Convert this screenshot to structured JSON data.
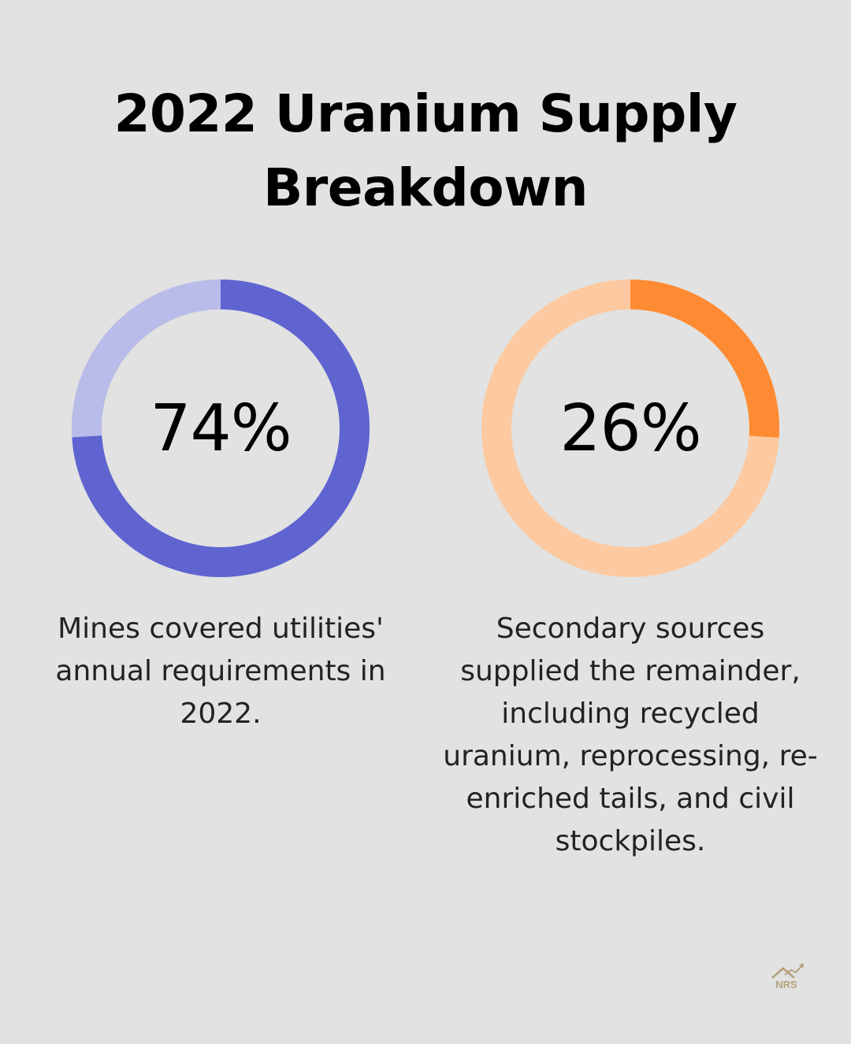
{
  "title": "2022 Uranium Supply\nBreakdown",
  "chart_data": [
    {
      "type": "pie",
      "value": 74,
      "label": "74%",
      "caption": "Mines covered utilities' annual requirements in 2022.",
      "colors": {
        "filled": "#5f64d0",
        "remainder": "#b9bce8"
      }
    },
    {
      "type": "pie",
      "value": 26,
      "label": "26%",
      "caption": "Secondary sources supplied the remainder, including recycled uranium, reprocessing, re-enriched tails, and civil stockpiles.",
      "colors": {
        "filled": "#fe8b33",
        "remainder": "#fdc9a0"
      }
    }
  ],
  "logo": {
    "text": "NRS",
    "icon": "house-chart-logo-icon",
    "color": "#b6a07c"
  }
}
